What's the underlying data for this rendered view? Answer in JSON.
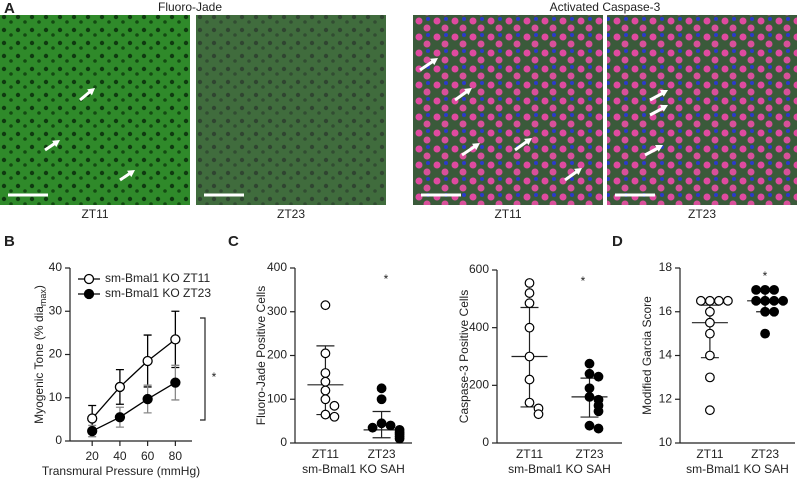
{
  "images": {
    "panel": "A",
    "titles": [
      "Fluoro-Jade",
      "Activated Caspase-3"
    ],
    "captions": [
      "ZT11",
      "ZT23",
      "ZT11",
      "ZT23"
    ]
  },
  "chart_data": [
    {
      "type": "line",
      "panel": "B",
      "xlabel": "Transmural Pressure (mmHg)",
      "ylabel": "Myogenic Tone (% dia",
      "ylabel_sub": "max",
      "ylabel_end": ")",
      "x": [
        20,
        40,
        60,
        80
      ],
      "xlim": [
        4,
        92
      ],
      "xticks": [
        20,
        40,
        60,
        80
      ],
      "ylim": [
        0,
        40
      ],
      "yticks": [
        0,
        10,
        20,
        30,
        40
      ],
      "series": [
        {
          "name": "sm-Bmal1 KO ZT11",
          "color": "#000000",
          "fill": "#ffffff",
          "error_color": "#000000",
          "values": [
            5.2,
            12.5,
            18.5,
            23.5
          ],
          "errors": [
            3,
            4,
            6,
            6.5
          ]
        },
        {
          "name": "sm-Bmal1 KO ZT23",
          "color": "#000000",
          "fill": "#000000",
          "error_color": "#888888",
          "values": [
            2.3,
            5.5,
            9.7,
            13.5
          ],
          "errors": [
            1.3,
            2.3,
            3.2,
            4
          ]
        }
      ],
      "annotation": "*"
    },
    {
      "type": "dot",
      "panel": "C",
      "xlabel": "sm-Bmal1 KO SAH",
      "ylabel": "Fluoro-Jade Positive Cells",
      "ylim": [
        0,
        400
      ],
      "yticks": [
        0,
        100,
        200,
        300,
        400
      ],
      "groups": [
        {
          "name": "ZT11",
          "fill": "#ffffff",
          "values": [
            315,
            205,
            160,
            140,
            120,
            100,
            85,
            65,
            60
          ],
          "center": 133,
          "lower": 65,
          "upper": 222
        },
        {
          "name": "ZT23",
          "fill": "#000000",
          "values": [
            125,
            100,
            45,
            40,
            35,
            30,
            25,
            20,
            15,
            10
          ],
          "center": 30,
          "lower": 12,
          "upper": 72
        }
      ],
      "annotation": "*"
    },
    {
      "type": "dot",
      "xlabel": "sm-Bmal1 KO SAH",
      "ylabel": "Caspase-3 Positive Cells",
      "ylim": [
        0,
        600
      ],
      "yticks": [
        0,
        200,
        400,
        600
      ],
      "groups": [
        {
          "name": "ZT11",
          "fill": "#ffffff",
          "values": [
            555,
            520,
            485,
            400,
            300,
            220,
            140,
            120,
            100
          ],
          "center": 300,
          "lower": 125,
          "upper": 470
        },
        {
          "name": "ZT23",
          "fill": "#000000",
          "values": [
            275,
            240,
            230,
            190,
            160,
            150,
            130,
            110,
            60,
            50
          ],
          "center": 160,
          "lower": 90,
          "upper": 225
        }
      ],
      "annotation": "*"
    },
    {
      "type": "dot",
      "panel": "D",
      "xlabel": "sm-Bmal1 KO SAH",
      "ylabel": "Modified Garcia Score",
      "ylim": [
        10,
        18
      ],
      "yticks": [
        10,
        12,
        14,
        16,
        18
      ],
      "groups": [
        {
          "name": "ZT11",
          "fill": "#ffffff",
          "values": [
            16.5,
            16.5,
            16.5,
            16.5,
            16,
            15.5,
            15,
            14,
            13,
            11.5
          ],
          "center": 15.5,
          "lower": 13.9,
          "upper": 16.3
        },
        {
          "name": "ZT23",
          "fill": "#000000",
          "values": [
            17,
            17,
            17,
            16.5,
            16.5,
            16.5,
            16.5,
            16,
            16,
            15
          ],
          "center": 16.5,
          "lower": 16,
          "upper": 17
        }
      ],
      "annotation": "*"
    }
  ]
}
